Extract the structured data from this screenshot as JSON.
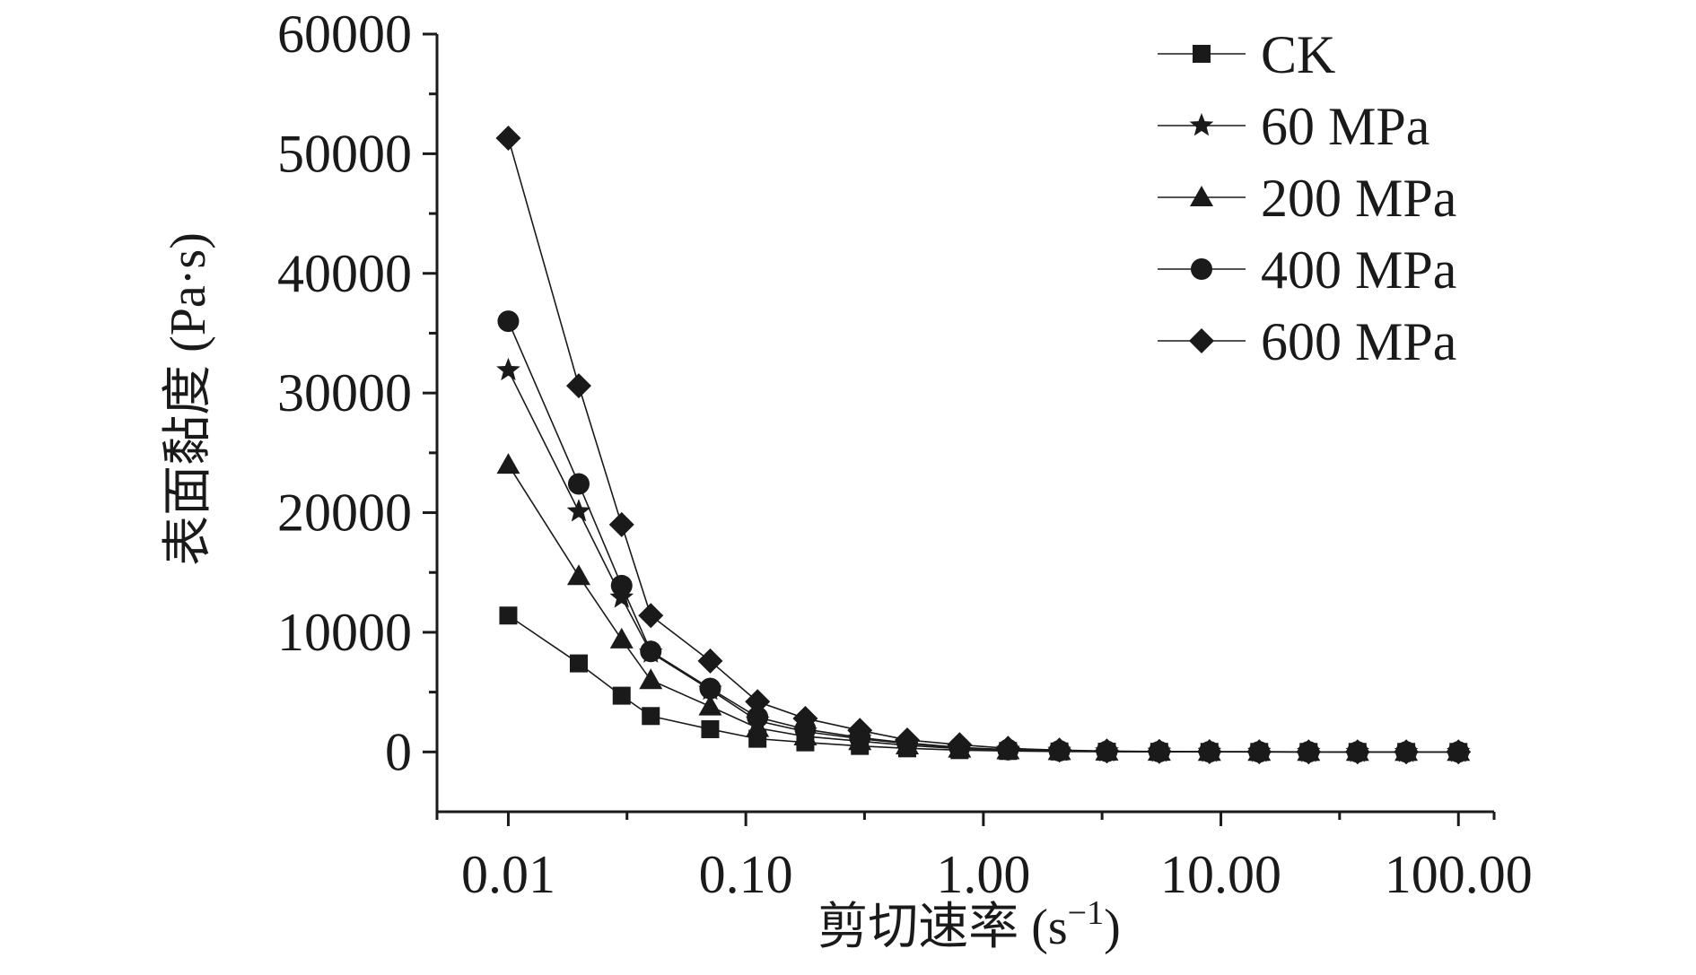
{
  "chart_data": {
    "type": "line",
    "title": "",
    "xlabel": "剪切速率 (s",
    "xlabel_exp": "−1",
    "xlabel_end": ")",
    "ylabel": "表面黏度 (Pa·s)",
    "xscale": "log",
    "xlim": [
      0.00501,
      141.3
    ],
    "ylim": [
      -5000,
      60000
    ],
    "xticks": [
      0.01,
      0.1,
      1,
      10,
      100
    ],
    "xtick_labels": [
      "0.01",
      "0.10",
      "1.00",
      "10.00",
      "100.00"
    ],
    "yticks": [
      0,
      10000,
      20000,
      30000,
      40000,
      50000,
      60000
    ],
    "ytick_labels": [
      "0",
      "10000",
      "20000",
      "30000",
      "40000",
      "50000",
      "60000"
    ],
    "grid": false,
    "legend_position": "top-right",
    "x": [
      0.01,
      0.0198,
      0.03,
      0.0398,
      0.0708,
      0.112,
      0.178,
      0.302,
      0.478,
      0.794,
      1.27,
      2.09,
      3.31,
      5.5,
      8.95,
      14.5,
      23.4,
      37.6,
      60.3,
      100
    ],
    "series": [
      {
        "name": "CK",
        "marker": "square",
        "values": [
          11400,
          7400,
          4700,
          3000,
          1900,
          1100,
          800,
          500,
          300,
          150,
          80,
          40,
          20,
          10,
          5,
          3,
          2,
          1,
          1,
          1
        ]
      },
      {
        "name": "60 MPa",
        "marker": "star",
        "values": [
          31900,
          20100,
          12900,
          8300,
          5200,
          2600,
          1700,
          1100,
          700,
          350,
          180,
          90,
          45,
          22,
          11,
          6,
          3,
          2,
          1,
          1
        ]
      },
      {
        "name": "200 MPa",
        "marker": "triangle",
        "values": [
          24000,
          14700,
          9400,
          6000,
          3800,
          2000,
          1300,
          900,
          550,
          280,
          140,
          70,
          35,
          17,
          9,
          5,
          3,
          2,
          1,
          1
        ]
      },
      {
        "name": "400 MPa",
        "marker": "circle",
        "values": [
          36000,
          22400,
          13900,
          8400,
          5300,
          2900,
          1900,
          1200,
          750,
          380,
          190,
          95,
          48,
          24,
          12,
          6,
          3,
          2,
          1,
          1
        ]
      },
      {
        "name": "600 MPa",
        "marker": "diamond",
        "values": [
          51300,
          30600,
          19000,
          11400,
          7600,
          4200,
          2800,
          1800,
          1000,
          600,
          300,
          150,
          75,
          38,
          19,
          10,
          5,
          3,
          2,
          1
        ]
      }
    ]
  }
}
